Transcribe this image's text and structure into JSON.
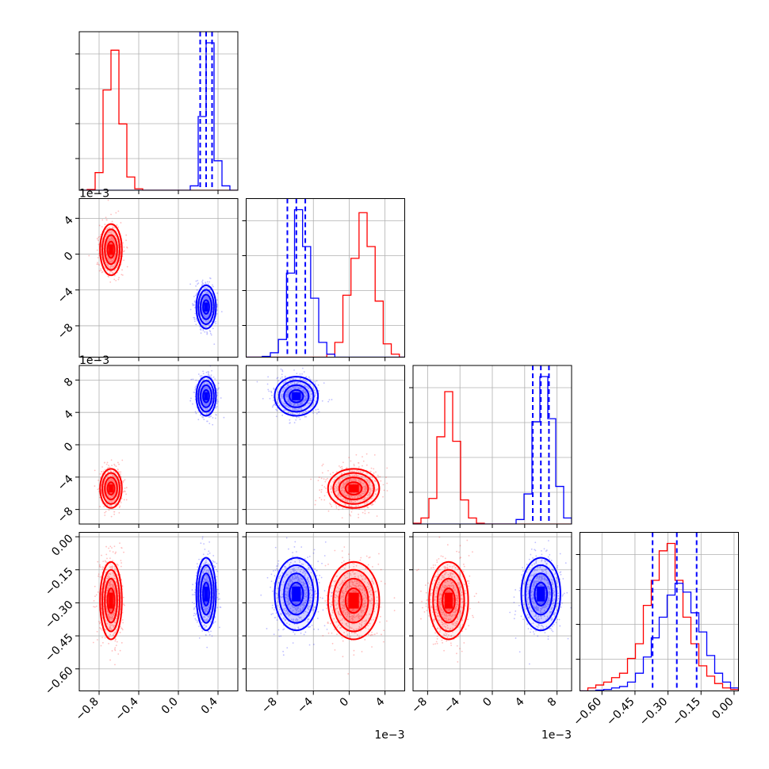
{
  "chart_data": {
    "type": "corner",
    "parameters": [
      "p1",
      "p2",
      "p3",
      "p4"
    ],
    "parameter_labels": [
      "",
      "",
      "",
      ""
    ],
    "offset_texts": [
      "",
      "1e−3",
      "1e−3",
      ""
    ],
    "xaxis_offset_texts": [
      "",
      "1e−3",
      "1e−3",
      ""
    ],
    "tick_values": [
      [
        -0.8,
        -0.4,
        0.0,
        0.4
      ],
      [
        -0.008,
        -0.004,
        0.0,
        0.004
      ],
      [
        -0.008,
        -0.004,
        0.0,
        0.004,
        0.008
      ],
      [
        -0.6,
        -0.45,
        -0.3,
        -0.15,
        0.0
      ]
    ],
    "tick_labels": [
      [
        "−0.8",
        "−0.4",
        "0.0",
        "0.4"
      ],
      [
        "−8",
        "−4",
        "0",
        "4"
      ],
      [
        "−8",
        "−4",
        "0",
        "4",
        "8"
      ],
      [
        "−0.60",
        "−0.45",
        "−0.30",
        "−0.15",
        "0.00"
      ]
    ],
    "ranges": [
      [
        -1.0,
        0.6
      ],
      [
        -0.0115,
        0.0062
      ],
      [
        -0.0098,
        0.0098
      ],
      [
        -0.7,
        0.02
      ]
    ],
    "grid": true,
    "series": [
      {
        "color": "#ff0000",
        "means": [
          -0.68,
          0.0005,
          -0.0054,
          -0.29
        ],
        "sigmas": [
          0.05,
          0.0013,
          0.0011,
          0.08
        ]
      },
      {
        "color": "#0000ff",
        "means": [
          0.28,
          -0.0059,
          0.006,
          -0.26
        ],
        "sigmas": [
          0.045,
          0.0011,
          0.0011,
          0.075
        ]
      }
    ],
    "histograms": [
      {
        "edges": [
          -1.0,
          -0.92,
          -0.84,
          -0.76,
          -0.68,
          -0.6,
          -0.52,
          -0.44,
          -0.36,
          -0.28,
          -0.2,
          -0.12,
          -0.04,
          0.04,
          0.12,
          0.2,
          0.28,
          0.36,
          0.44,
          0.52,
          0.6
        ],
        "counts": [
          [
            0,
            0.5,
            12,
            68,
            95,
            45,
            9,
            1,
            0,
            0,
            0,
            0,
            0,
            0,
            0,
            0,
            0,
            0,
            0,
            0
          ],
          [
            0,
            0,
            0,
            0,
            0,
            0,
            0,
            0,
            0,
            0,
            0,
            0,
            0,
            0,
            3,
            50,
            100,
            20,
            3,
            0
          ]
        ]
      },
      {
        "edges": [
          -0.0115,
          -0.0106,
          -0.0097,
          -0.0088,
          -0.0079,
          -0.007,
          -0.0061,
          -0.0052,
          -0.0043,
          -0.0034,
          -0.0025,
          -0.0016,
          -0.0007,
          0.0002,
          0.0011,
          0.002,
          0.0029,
          0.0038,
          0.0047,
          0.0056,
          0.0062
        ],
        "counts": [
          [
            0,
            0,
            0,
            0,
            0,
            0,
            0,
            0,
            0,
            0,
            2,
            10,
            42,
            67,
            98,
            75,
            38,
            9,
            2,
            0
          ],
          [
            0,
            0,
            0.5,
            3,
            12,
            57,
            100,
            75,
            40,
            10,
            2,
            0,
            0,
            0,
            0,
            0,
            0,
            0,
            0,
            0
          ]
        ]
      },
      {
        "edges": [
          -0.0098,
          -0.00882,
          -0.00784,
          -0.00686,
          -0.00588,
          -0.0049,
          -0.00392,
          -0.00294,
          -0.00196,
          -0.00098,
          0,
          0.00098,
          0.00196,
          0.00294,
          0.00392,
          0.0049,
          0.00588,
          0.00686,
          0.00784,
          0.00882,
          0.0098
        ],
        "counts": [
          [
            0.5,
            4,
            17,
            58,
            88,
            55,
            16,
            4,
            0.5,
            0,
            0,
            0,
            0,
            0,
            0,
            0,
            0,
            0,
            0,
            0
          ],
          [
            0,
            0,
            0,
            0,
            0,
            0,
            0,
            0,
            0,
            0,
            0,
            0,
            0,
            3,
            20,
            68,
            98,
            70,
            25,
            4
          ]
        ]
      },
      {
        "edges": [
          -0.7,
          -0.664,
          -0.628,
          -0.592,
          -0.556,
          -0.52,
          -0.484,
          -0.448,
          -0.412,
          -0.376,
          -0.34,
          -0.304,
          -0.268,
          -0.232,
          -0.196,
          -0.16,
          -0.124,
          -0.088,
          -0.052,
          -0.016,
          0.02
        ],
        "counts": [
          [
            0,
            2,
            4,
            6,
            9,
            12,
            22,
            32,
            58,
            75,
            95,
            100,
            75,
            50,
            32,
            17,
            10,
            5,
            2,
            1
          ],
          [
            0,
            0,
            0.5,
            1,
            2,
            3,
            6,
            12,
            23,
            36,
            50,
            65,
            73,
            67,
            53,
            40,
            24,
            12,
            6,
            2
          ]
        ]
      }
    ],
    "quantiles": [
      [
        0.22,
        0.28,
        0.34
      ],
      [
        -0.0069,
        -0.0059,
        -0.0049
      ],
      [
        0.005,
        0.006,
        0.007
      ],
      [
        -0.37,
        -0.26,
        -0.17
      ]
    ],
    "quantile_color": "#0000ff",
    "contour_levels_sigma": [
      0.7,
      1.25,
      1.75,
      2.2
    ]
  }
}
